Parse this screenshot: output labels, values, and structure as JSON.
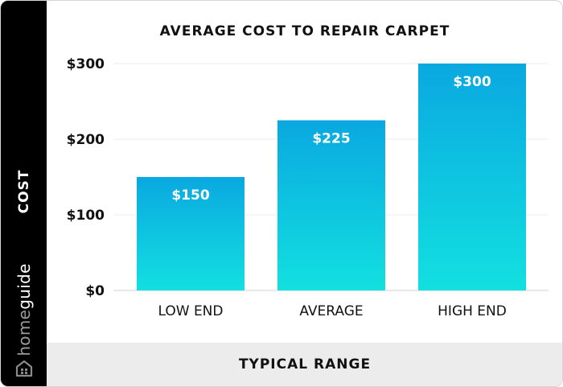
{
  "branding": {
    "logo_text_part1": "home",
    "logo_text_part2": "guide",
    "logo_icon": "house-icon"
  },
  "colors": {
    "bar_top": "#0aa8e0",
    "bar_bottom": "#12e0e0",
    "sidebar": "#000000",
    "footer": "#ececec"
  },
  "chart_data": {
    "type": "bar",
    "title": "AVERAGE COST TO REPAIR CARPET",
    "xlabel": "TYPICAL RANGE",
    "ylabel": "COST",
    "categories": [
      "LOW END",
      "AVERAGE",
      "HIGH END"
    ],
    "values": [
      150,
      225,
      300
    ],
    "data_labels": [
      "$150",
      "$225",
      "$300"
    ],
    "yticks": [
      0,
      100,
      200,
      300
    ],
    "ytick_labels": [
      "$0",
      "$100",
      "$200",
      "$300"
    ],
    "ylim": [
      0,
      300
    ],
    "grid": true,
    "legend": "none"
  }
}
